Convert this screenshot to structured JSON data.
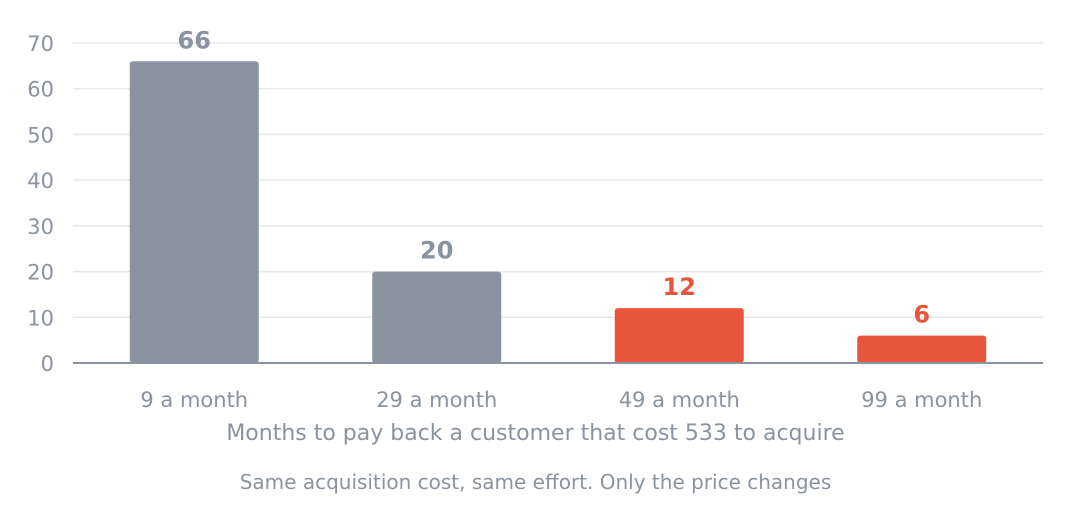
{
  "chart_data": {
    "type": "bar",
    "categories": [
      "9 a month",
      "29 a month",
      "49 a month",
      "99 a month"
    ],
    "values": [
      66,
      20,
      12,
      6
    ],
    "value_labels": [
      "66",
      "20",
      "12",
      "6"
    ],
    "bar_colors": [
      "#8a93a0",
      "#8a93a0",
      "#e8553a",
      "#e8553a"
    ],
    "xlabel": "Months to pay back a customer that cost 533 to acquire",
    "ylabel": "",
    "subtitle": "Same acquisition cost, same effort. Only the price changes",
    "ylim": [
      0,
      70
    ],
    "yticks": [
      "0",
      "10",
      "20",
      "30",
      "40",
      "50",
      "60",
      "70"
    ],
    "grid": true,
    "legend": "none"
  },
  "colors": {
    "muted": "#8a93a0",
    "highlight": "#e8553a",
    "grid": "#e6e8eb",
    "axis": "#8a93a0"
  }
}
